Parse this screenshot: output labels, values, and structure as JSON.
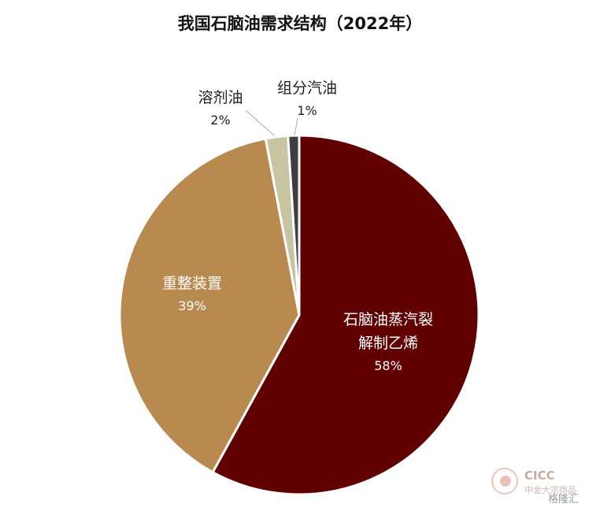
{
  "chart_data": {
    "type": "pie",
    "title": "我国石脑油需求结构（2022年）",
    "slices": [
      {
        "label_lines": [
          "石脑油蒸汽裂",
          "解制乙烯"
        ],
        "value": 58,
        "value_label": "58%",
        "color": "#600000",
        "text_color": "#ffffff"
      },
      {
        "label_lines": [
          "重整装置"
        ],
        "value": 39,
        "value_label": "39%",
        "color": "#b98a4f",
        "text_color": "#ffffff"
      },
      {
        "label_lines": [
          "溶剂油"
        ],
        "value": 2,
        "value_label": "2%",
        "color": "#c8c3a0",
        "text_color": "#222222"
      },
      {
        "label_lines": [
          "组分汽油"
        ],
        "value": 1,
        "value_label": "1%",
        "color": "#3e3e3e",
        "text_color": "#222222"
      }
    ]
  },
  "watermark": {
    "brand": "CICC",
    "sub": "中金大宗商品",
    "overlay": "格隆汇"
  }
}
